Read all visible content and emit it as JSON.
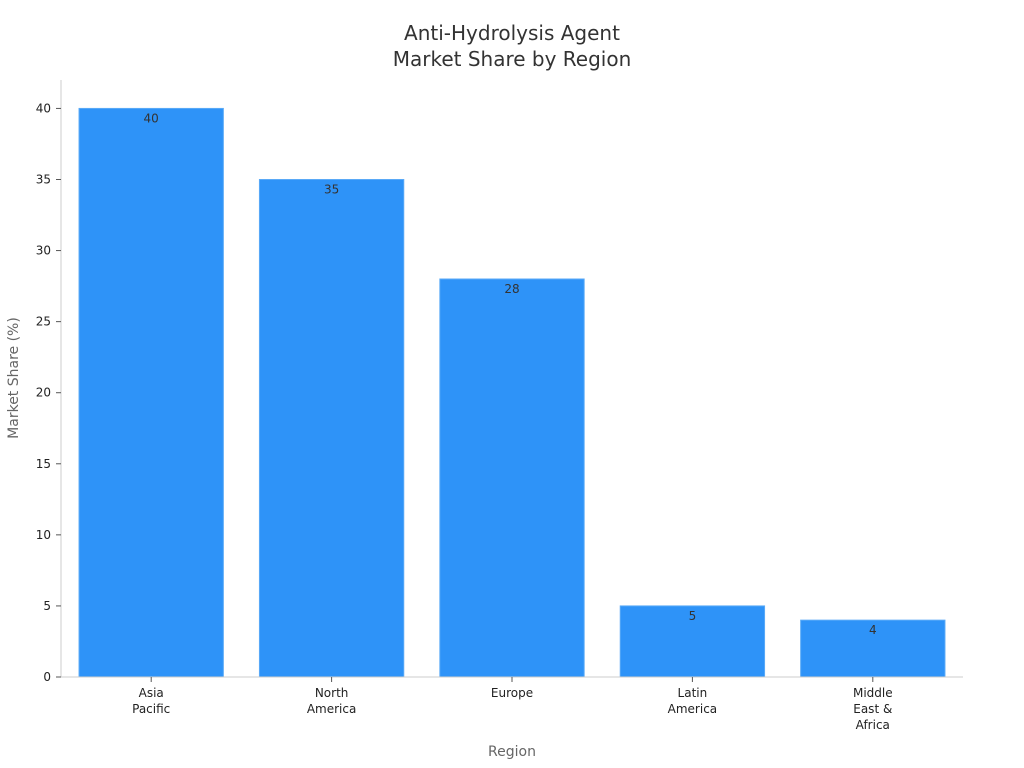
{
  "chart_data": {
    "type": "bar",
    "title": [
      "Anti-Hydrolysis Agent",
      "Market Share by Region"
    ],
    "xlabel": "Region",
    "ylabel": "Market Share (%)",
    "categories": [
      [
        "Asia",
        "Pacific"
      ],
      [
        "North",
        "America"
      ],
      [
        "Europe"
      ],
      [
        "Latin",
        "America"
      ],
      [
        "Middle",
        "East &",
        "Africa"
      ]
    ],
    "values": [
      40,
      35,
      28,
      5,
      4
    ],
    "data_labels": [
      "40",
      "35",
      "28",
      "5",
      "4"
    ],
    "ylim": [
      0,
      42
    ],
    "yticks": [
      0,
      5,
      10,
      15,
      20,
      25,
      30,
      35,
      40
    ],
    "grid": false,
    "legend": "none",
    "colors": {
      "bar": "#2e93f8",
      "bar_stroke": "#5aaaf7"
    }
  }
}
